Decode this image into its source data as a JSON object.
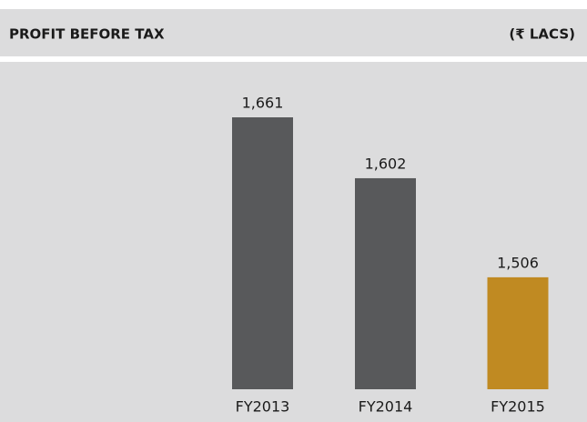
{
  "chart_data": {
    "type": "bar",
    "title": "PROFIT BEFORE TAX",
    "unit_label": "(₹ LACS)",
    "categories": [
      "FY2013",
      "FY2014",
      "FY2015"
    ],
    "values": [
      1661,
      1602,
      1506
    ],
    "value_labels": [
      "1,661",
      "1,602",
      "1,506"
    ],
    "colors": [
      "#58595b",
      "#58595b",
      "#c08a22"
    ]
  }
}
